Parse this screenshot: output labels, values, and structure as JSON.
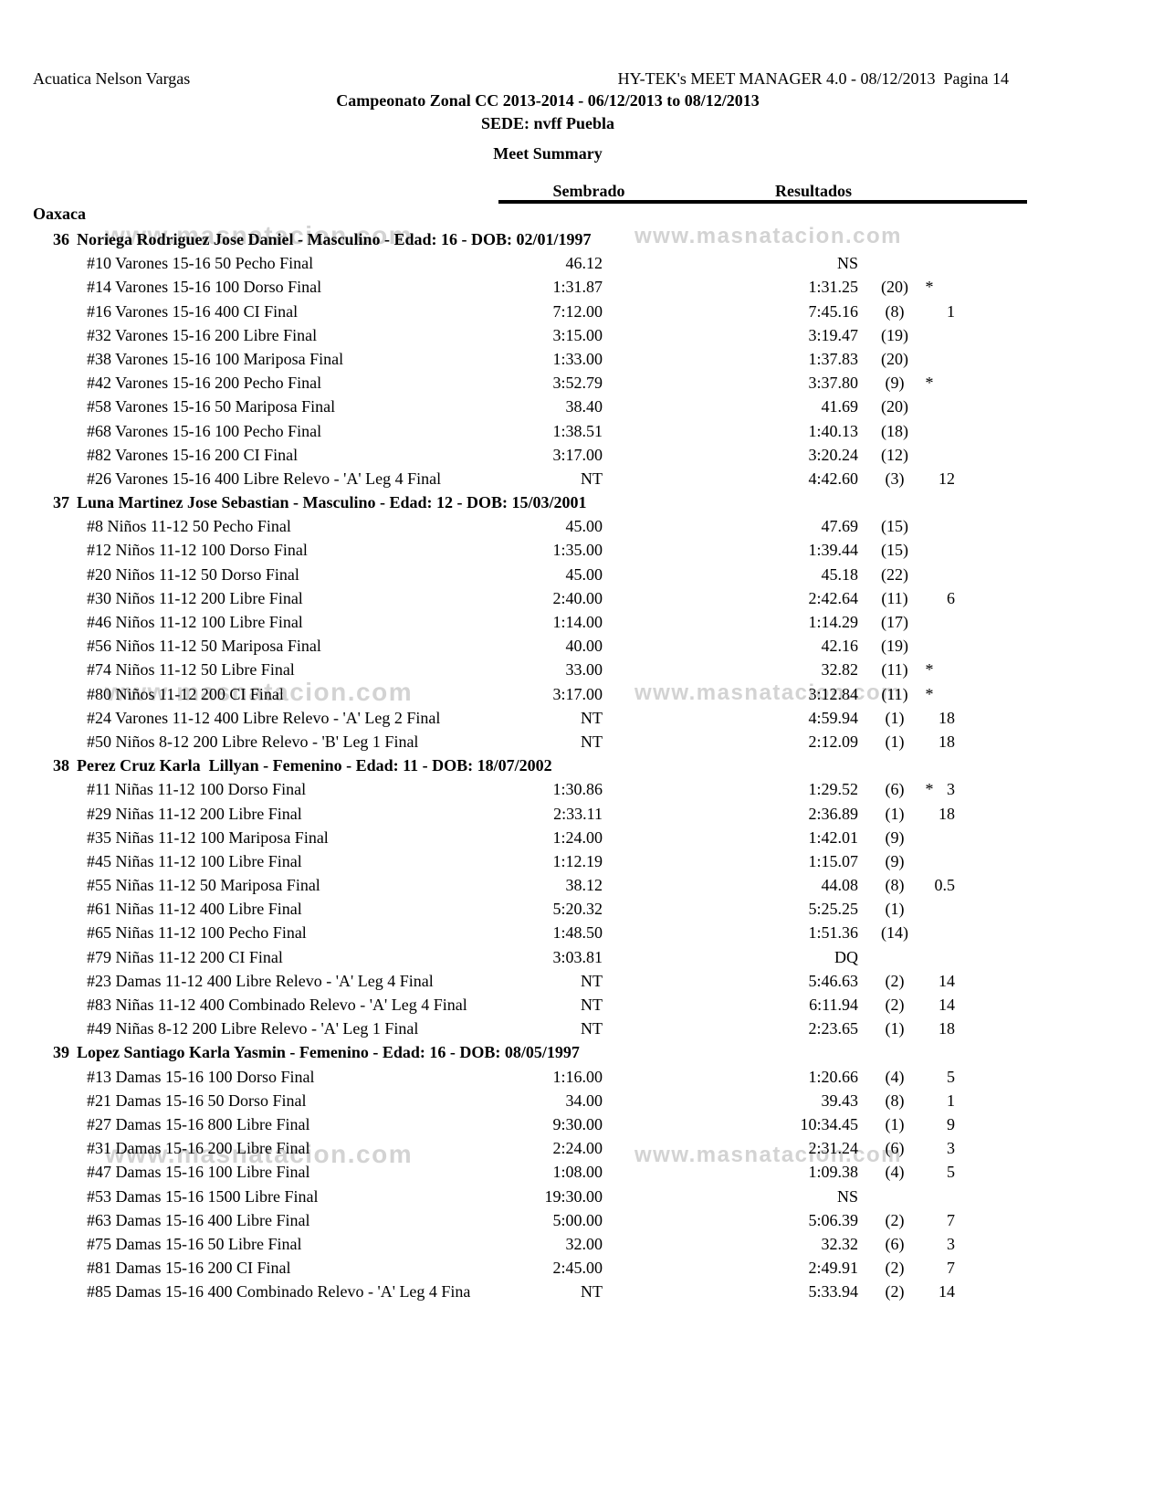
{
  "page": {
    "club": "Acuatica Nelson Vargas",
    "generator": "HY-TEK's MEET MANAGER 4.0 - 08/12/2013  Pagina 14",
    "meet_title": "Campeonato Zonal CC 2013-2014 - 06/12/2013 to 08/12/2013",
    "venue": "SEDE: nvff Puebla",
    "report_title": "Meet Summary",
    "watermark": "www.masnatacion.com"
  },
  "columns": {
    "seed": "Sembrado",
    "results": "Resultados"
  },
  "team": {
    "name": "Oaxaca"
  },
  "swimmers": [
    {
      "number": "36",
      "name": "Noriega Rodriguez Jose Daniel - Masculino - Edad: 16 - DOB: 02/01/1997",
      "events": [
        {
          "label": "#10 Varones 15-16 50 Pecho Final",
          "seed": "46.12",
          "result": "NS",
          "place": "",
          "flag": "",
          "points": ""
        },
        {
          "label": "#14 Varones 15-16 100 Dorso Final",
          "seed": "1:31.87",
          "result": "1:31.25",
          "place": "(20)",
          "flag": "*",
          "points": ""
        },
        {
          "label": "#16 Varones 15-16 400 CI Final",
          "seed": "7:12.00",
          "result": "7:45.16",
          "place": "(8)",
          "flag": "",
          "points": "1"
        },
        {
          "label": "#32 Varones 15-16 200 Libre Final",
          "seed": "3:15.00",
          "result": "3:19.47",
          "place": "(19)",
          "flag": "",
          "points": ""
        },
        {
          "label": "#38 Varones 15-16 100 Mariposa Final",
          "seed": "1:33.00",
          "result": "1:37.83",
          "place": "(20)",
          "flag": "",
          "points": ""
        },
        {
          "label": "#42 Varones 15-16 200 Pecho Final",
          "seed": "3:52.79",
          "result": "3:37.80",
          "place": "(9)",
          "flag": "*",
          "points": ""
        },
        {
          "label": "#58 Varones 15-16 50 Mariposa Final",
          "seed": "38.40",
          "result": "41.69",
          "place": "(20)",
          "flag": "",
          "points": ""
        },
        {
          "label": "#68 Varones 15-16 100 Pecho Final",
          "seed": "1:38.51",
          "result": "1:40.13",
          "place": "(18)",
          "flag": "",
          "points": ""
        },
        {
          "label": "#82 Varones 15-16 200 CI Final",
          "seed": "3:17.00",
          "result": "3:20.24",
          "place": "(12)",
          "flag": "",
          "points": ""
        },
        {
          "label": "#26 Varones 15-16 400 Libre Relevo - 'A' Leg 4 Final",
          "seed": "NT",
          "result": "4:42.60",
          "place": "(3)",
          "flag": "",
          "points": "12"
        }
      ]
    },
    {
      "number": "37",
      "name": "Luna Martinez Jose Sebastian - Masculino - Edad: 12 - DOB: 15/03/2001",
      "events": [
        {
          "label": "#8 Niños 11-12 50 Pecho Final",
          "seed": "45.00",
          "result": "47.69",
          "place": "(15)",
          "flag": "",
          "points": ""
        },
        {
          "label": "#12 Niños 11-12 100 Dorso Final",
          "seed": "1:35.00",
          "result": "1:39.44",
          "place": "(15)",
          "flag": "",
          "points": ""
        },
        {
          "label": "#20 Niños 11-12 50 Dorso Final",
          "seed": "45.00",
          "result": "45.18",
          "place": "(22)",
          "flag": "",
          "points": ""
        },
        {
          "label": "#30 Niños 11-12 200 Libre Final",
          "seed": "2:40.00",
          "result": "2:42.64",
          "place": "(11)",
          "flag": "",
          "points": "6"
        },
        {
          "label": "#46 Niños 11-12 100 Libre Final",
          "seed": "1:14.00",
          "result": "1:14.29",
          "place": "(17)",
          "flag": "",
          "points": ""
        },
        {
          "label": "#56 Niños 11-12 50 Mariposa Final",
          "seed": "40.00",
          "result": "42.16",
          "place": "(19)",
          "flag": "",
          "points": ""
        },
        {
          "label": "#74 Niños 11-12 50 Libre Final",
          "seed": "33.00",
          "result": "32.82",
          "place": "(11)",
          "flag": "*",
          "points": ""
        },
        {
          "label": "#80 Niños 11-12 200 CI Final",
          "seed": "3:17.00",
          "result": "3:12.84",
          "place": "(11)",
          "flag": "*",
          "points": ""
        },
        {
          "label": "#24 Varones 11-12 400 Libre Relevo - 'A' Leg 2 Final",
          "seed": "NT",
          "result": "4:59.94",
          "place": "(1)",
          "flag": "",
          "points": "18"
        },
        {
          "label": "#50 Niños 8-12 200 Libre Relevo - 'B' Leg 1 Final",
          "seed": "NT",
          "result": "2:12.09",
          "place": "(1)",
          "flag": "",
          "points": "18"
        }
      ]
    },
    {
      "number": "38",
      "name": "Perez Cruz Karla  Lillyan - Femenino - Edad: 11 - DOB: 18/07/2002",
      "events": [
        {
          "label": "#11 Niñas 11-12 100 Dorso Final",
          "seed": "1:30.86",
          "result": "1:29.52",
          "place": "(6)",
          "flag": "*",
          "points": "3"
        },
        {
          "label": "#29 Niñas 11-12 200 Libre Final",
          "seed": "2:33.11",
          "result": "2:36.89",
          "place": "(1)",
          "flag": "",
          "points": "18"
        },
        {
          "label": "#35 Niñas 11-12 100 Mariposa Final",
          "seed": "1:24.00",
          "result": "1:42.01",
          "place": "(9)",
          "flag": "",
          "points": ""
        },
        {
          "label": "#45 Niñas 11-12 100 Libre Final",
          "seed": "1:12.19",
          "result": "1:15.07",
          "place": "(9)",
          "flag": "",
          "points": ""
        },
        {
          "label": "#55 Niñas 11-12 50 Mariposa Final",
          "seed": "38.12",
          "result": "44.08",
          "place": "(8)",
          "flag": "",
          "points": "0.5"
        },
        {
          "label": "#61 Niñas 11-12 400 Libre Final",
          "seed": "5:20.32",
          "result": "5:25.25",
          "place": "(1)",
          "flag": "",
          "points": ""
        },
        {
          "label": "#65 Niñas 11-12 100 Pecho Final",
          "seed": "1:48.50",
          "result": "1:51.36",
          "place": "(14)",
          "flag": "",
          "points": ""
        },
        {
          "label": "#79 Niñas 11-12 200 CI Final",
          "seed": "3:03.81",
          "result": "DQ",
          "place": "",
          "flag": "",
          "points": ""
        },
        {
          "label": "#23 Damas 11-12 400 Libre Relevo - 'A' Leg 4 Final",
          "seed": "NT",
          "result": "5:46.63",
          "place": "(2)",
          "flag": "",
          "points": "14"
        },
        {
          "label": "#83 Niñas 11-12 400 Combinado Relevo - 'A' Leg 4 Final",
          "seed": "NT",
          "result": "6:11.94",
          "place": "(2)",
          "flag": "",
          "points": "14"
        },
        {
          "label": "#49 Niñas 8-12 200 Libre Relevo - 'A' Leg 1 Final",
          "seed": "NT",
          "result": "2:23.65",
          "place": "(1)",
          "flag": "",
          "points": "18"
        }
      ]
    },
    {
      "number": "39",
      "name": "Lopez Santiago Karla Yasmin - Femenino - Edad: 16 - DOB: 08/05/1997",
      "events": [
        {
          "label": "#13 Damas 15-16 100 Dorso Final",
          "seed": "1:16.00",
          "result": "1:20.66",
          "place": "(4)",
          "flag": "",
          "points": "5"
        },
        {
          "label": "#21 Damas 15-16 50 Dorso Final",
          "seed": "34.00",
          "result": "39.43",
          "place": "(8)",
          "flag": "",
          "points": "1"
        },
        {
          "label": "#27 Damas 15-16 800 Libre Final",
          "seed": "9:30.00",
          "result": "10:34.45",
          "place": "(1)",
          "flag": "",
          "points": "9"
        },
        {
          "label": "#31 Damas 15-16 200 Libre Final",
          "seed": "2:24.00",
          "result": "2:31.24",
          "place": "(6)",
          "flag": "",
          "points": "3"
        },
        {
          "label": "#47 Damas 15-16 100 Libre Final",
          "seed": "1:08.00",
          "result": "1:09.38",
          "place": "(4)",
          "flag": "",
          "points": "5"
        },
        {
          "label": "#53 Damas 15-16 1500 Libre Final",
          "seed": "19:30.00",
          "result": "NS",
          "place": "",
          "flag": "",
          "points": ""
        },
        {
          "label": "#63 Damas 15-16 400 Libre Final",
          "seed": "5:00.00",
          "result": "5:06.39",
          "place": "(2)",
          "flag": "",
          "points": "7"
        },
        {
          "label": "#75 Damas 15-16 50 Libre Final",
          "seed": "32.00",
          "result": "32.32",
          "place": "(6)",
          "flag": "",
          "points": "3"
        },
        {
          "label": "#81 Damas 15-16 200 CI Final",
          "seed": "2:45.00",
          "result": "2:49.91",
          "place": "(2)",
          "flag": "",
          "points": "7"
        },
        {
          "label": "#85 Damas 15-16 400 Combinado Relevo - 'A' Leg 4 Fina",
          "seed": "NT",
          "result": "5:33.94",
          "place": "(2)",
          "flag": "",
          "points": "14"
        }
      ]
    }
  ]
}
